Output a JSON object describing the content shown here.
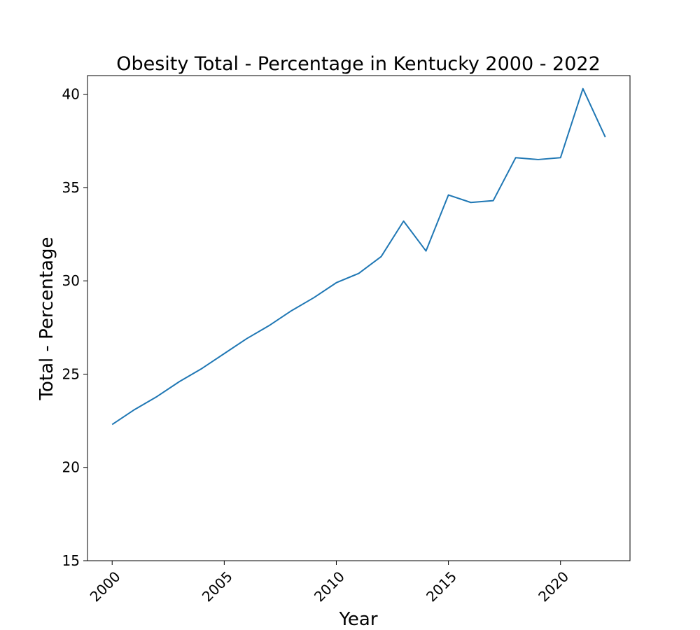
{
  "chart_data": {
    "type": "line",
    "title": "Obesity Total - Percentage in Kentucky 2000 - 2022",
    "xlabel": "Year",
    "ylabel": "Total - Percentage",
    "x": [
      2000,
      2001,
      2002,
      2003,
      2004,
      2005,
      2006,
      2007,
      2008,
      2009,
      2010,
      2011,
      2012,
      2013,
      2014,
      2015,
      2016,
      2017,
      2018,
      2019,
      2020,
      2021,
      2022
    ],
    "series": [
      {
        "values": [
          22.3,
          23.1,
          23.8,
          24.6,
          25.3,
          26.1,
          26.9,
          27.6,
          28.4,
          29.1,
          29.9,
          30.4,
          31.3,
          33.2,
          31.6,
          34.6,
          34.2,
          34.3,
          36.6,
          36.5,
          36.6,
          40.3,
          37.7
        ],
        "color": "#1f77b4"
      }
    ],
    "xlim": [
      1998.9,
      2023.1
    ],
    "ylim": [
      15,
      41
    ],
    "xticks": [
      2000,
      2005,
      2010,
      2015,
      2020
    ],
    "xtick_labels": [
      "2000",
      "2005",
      "2010",
      "2015",
      "2020"
    ],
    "yticks": [
      15,
      20,
      25,
      30,
      35,
      40
    ],
    "ytick_labels": [
      "15",
      "20",
      "25",
      "30",
      "35",
      "40"
    ],
    "xtick_rotation": 45,
    "grid": false,
    "legend": "none"
  }
}
